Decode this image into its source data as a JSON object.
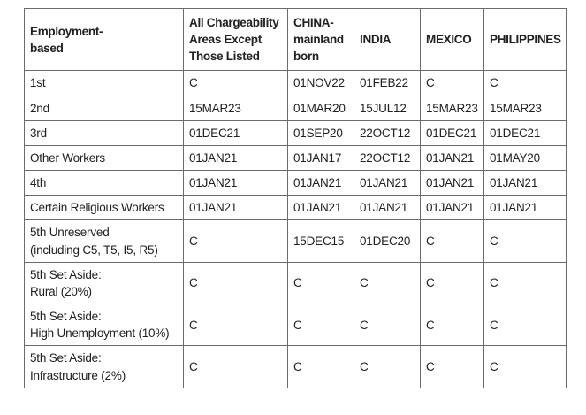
{
  "chart_data": {
    "type": "table",
    "columns": [
      {
        "label": "Employment-\nbased"
      },
      {
        "label": "All Chargeability\nAreas Except\nThose Listed"
      },
      {
        "label": "CHINA-\nmainland\nborn"
      },
      {
        "label": "INDIA"
      },
      {
        "label": "MEXICO"
      },
      {
        "label": "PHILIPPINES"
      }
    ],
    "rows": [
      {
        "category": "1st",
        "values": [
          "C",
          "01NOV22",
          "01FEB22",
          "C",
          "C"
        ]
      },
      {
        "category": "2nd",
        "values": [
          "15MAR23",
          "01MAR20",
          "15JUL12",
          "15MAR23",
          "15MAR23"
        ]
      },
      {
        "category": "3rd",
        "values": [
          "01DEC21",
          "01SEP20",
          "22OCT12",
          "01DEC21",
          "01DEC21"
        ]
      },
      {
        "category": "Other Workers",
        "values": [
          "01JAN21",
          "01JAN17",
          "22OCT12",
          "01JAN21",
          "01MAY20"
        ]
      },
      {
        "category": "4th",
        "values": [
          "01JAN21",
          "01JAN21",
          "01JAN21",
          "01JAN21",
          "01JAN21"
        ]
      },
      {
        "category": "Certain Religious Workers",
        "values": [
          "01JAN21",
          "01JAN21",
          "01JAN21",
          "01JAN21",
          "01JAN21"
        ]
      },
      {
        "category": "5th Unreserved\n(including C5, T5, I5, R5)",
        "values": [
          "C",
          "15DEC15",
          "01DEC20",
          "C",
          "C"
        ]
      },
      {
        "category": "5th Set Aside:\nRural (20%)",
        "values": [
          "C",
          "C",
          "C",
          "C",
          "C"
        ]
      },
      {
        "category": "5th Set Aside:\nHigh Unemployment (10%)",
        "values": [
          "C",
          "C",
          "C",
          "C",
          "C"
        ]
      },
      {
        "category": "5th Set Aside:\nInfrastructure (2%)",
        "values": [
          "C",
          "C",
          "C",
          "C",
          "C"
        ]
      }
    ],
    "layout": {
      "grid": true,
      "border_color": "#6b6b6b",
      "text_color": "#202124",
      "background": "#ffffff"
    }
  }
}
